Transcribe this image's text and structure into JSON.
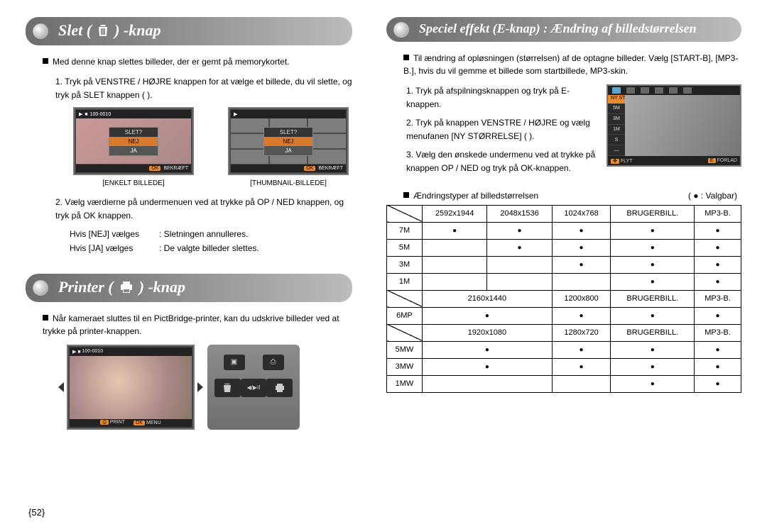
{
  "page_number": "52",
  "left": {
    "slet": {
      "title": "Slet (    ) -knap",
      "icon": "trash",
      "intro": "Med denne knap slettes billeder, der er gemt på memorykortet.",
      "step1": "Tryk på VENSTRE / HØJRE knappen for at vælge et billede, du vil slette, og tryk på SLET knappen (      ).",
      "step2": "Vælg værdierne på undermenuen ved at trykke på OP / NED knappen, og tryk på OK knappen.",
      "choice_no_label": "Hvis [NEJ] vælges",
      "choice_no_text": ": Sletningen annulleres.",
      "choice_yes_label": "Hvis [JA] vælges",
      "choice_yes_text": ": De valgte billeder slettes.",
      "dialog": {
        "title": "SLET?",
        "no": "NEJ",
        "yes": "JA",
        "ok": "OK",
        "confirm": "BEKRÆFT",
        "counter": "100-0010"
      },
      "caption_single": "[ENKELT BILLEDE]",
      "caption_thumb": "[THUMBNAIL-BILLEDE]"
    },
    "printer": {
      "title": "Printer (    ) -knap",
      "icon": "printer",
      "intro": "Når kameraet sluttes til en PictBridge-printer, kan du udskrive billeder ved at trykke på printer-knappen.",
      "lcd": {
        "print": "PRINT",
        "ok": "OK",
        "menu": "MENU",
        "counter": "100-0010"
      }
    }
  },
  "right": {
    "effect": {
      "title": "Speciel effekt (E-knap) : Ændring af billedstørrelsen",
      "intro": "Til ændring af opløsningen (størrelsen) af de optagne billeder. Vælg [START-B], [MP3-B.], hvis du vil gemme et billede som startbillede, MP3-skin.",
      "step1": "Tryk på afspilningsknappen og tryk på E-knappen.",
      "step2": "Tryk på knappen VENSTRE / HØJRE og vælg menufanen [NY STØRRELSE] (      ).",
      "step3": "Vælg den ønskede undermenu ved at trykke på knappen OP / NED og tryk på OK-knappen.",
      "lcd": {
        "label": "NY STØRRELSE",
        "sizes": [
          "5M",
          "3M",
          "1M",
          "S",
          "—"
        ],
        "move": "FLYT",
        "exit": "FORLAD",
        "e": "E"
      },
      "legend_left": "Ændringstyper af billedstørrelsen",
      "legend_right": "(  ●  : Valgbar)"
    },
    "table": {
      "rows": [
        {
          "label": "",
          "cols": [
            "2592x1944",
            "2048x1536",
            "1024x768",
            "BRUGERBILL.",
            "MP3-B."
          ],
          "diag": true
        },
        {
          "label": "7M",
          "dots": [
            true,
            true,
            true,
            true,
            true
          ]
        },
        {
          "label": "5M",
          "dots": [
            false,
            true,
            true,
            true,
            true
          ]
        },
        {
          "label": "3M",
          "dots": [
            false,
            false,
            true,
            true,
            true
          ]
        },
        {
          "label": "1M",
          "dots": [
            false,
            false,
            false,
            true,
            true
          ]
        },
        {
          "label": "",
          "cols": [
            "2160x1440",
            "1200x800",
            "BRUGERBILL.",
            "MP3-B."
          ],
          "diag": true,
          "span4": true
        },
        {
          "label": "6MP",
          "dots4": [
            true,
            true,
            true,
            true
          ]
        },
        {
          "label": "",
          "cols": [
            "1920x1080",
            "1280x720",
            "BRUGERBILL.",
            "MP3-B."
          ],
          "diag": true,
          "span4": true
        },
        {
          "label": "5MW",
          "dots4": [
            true,
            true,
            true,
            true
          ]
        },
        {
          "label": "3MW",
          "dots4": [
            true,
            true,
            true,
            true
          ]
        },
        {
          "label": "1MW",
          "dots4": [
            false,
            false,
            true,
            true
          ]
        }
      ]
    }
  }
}
